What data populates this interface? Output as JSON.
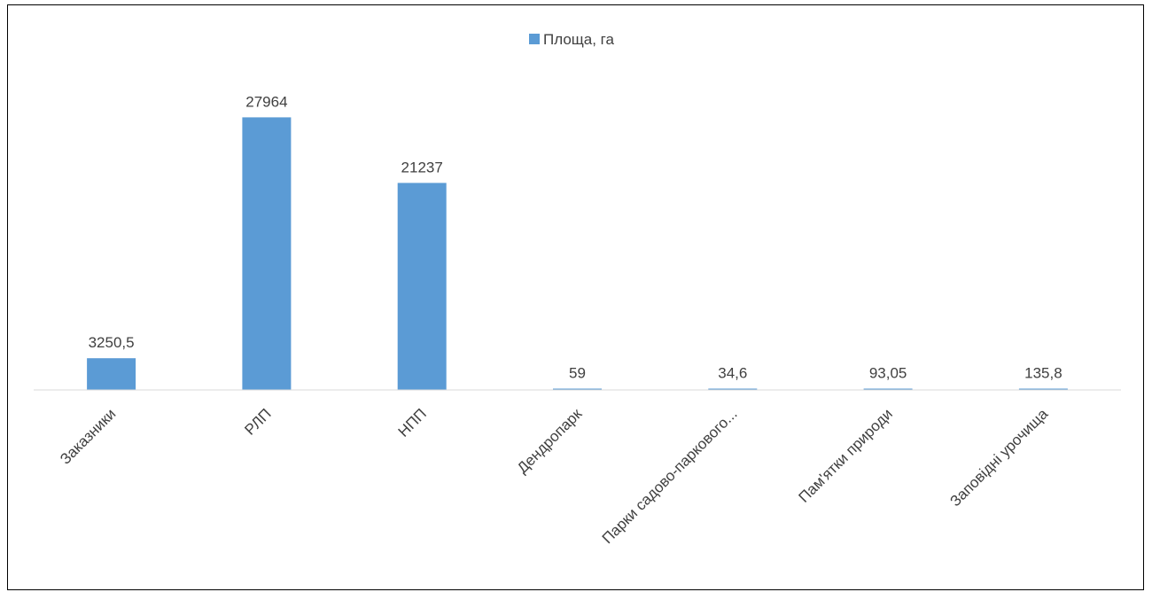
{
  "chart_data": {
    "type": "bar",
    "categories": [
      "Заказники",
      "РЛП",
      "НПП",
      "Дендропарк",
      "Парки садово-паркового...",
      "Пам'ятки природи",
      "Заповідні урочища"
    ],
    "series": [
      {
        "name": "Площа, га",
        "values": [
          3250.5,
          27964,
          21237,
          59,
          34.6,
          93.05,
          135.8
        ]
      }
    ],
    "data_labels": [
      "3250,5",
      "27964",
      "21237",
      "59",
      "34,6",
      "93,05",
      "135,8"
    ],
    "ylim": [
      0,
      32000
    ],
    "grid": false,
    "legend_position": "top-center",
    "colors": {
      "bar": "#5b9bd5",
      "axis": "#d9d9d9",
      "text": "#404040"
    }
  }
}
